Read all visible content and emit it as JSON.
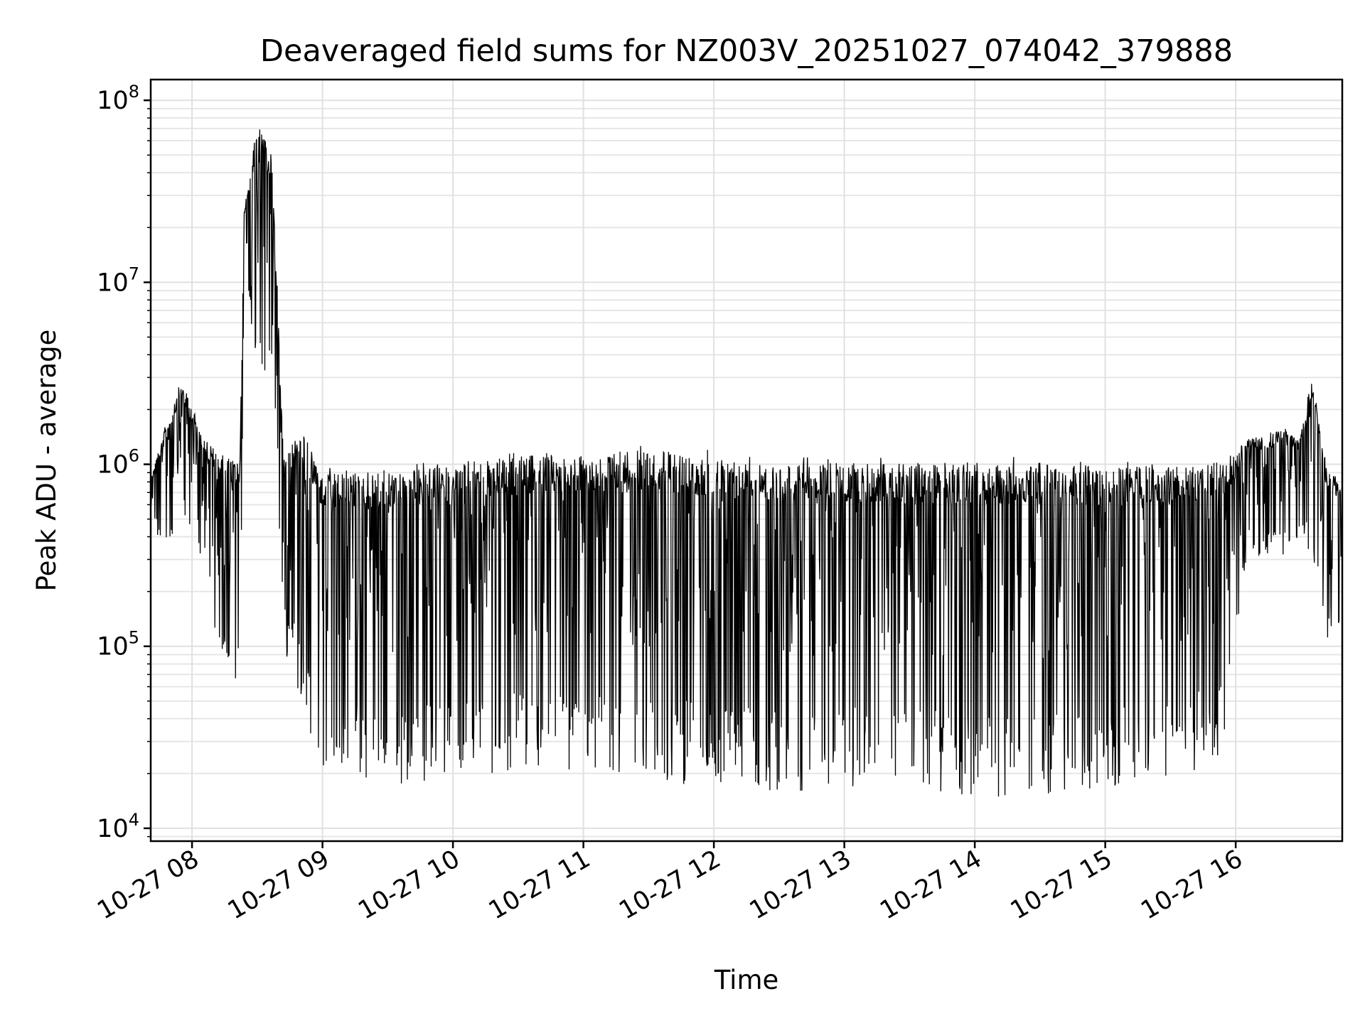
{
  "chart_data": {
    "type": "line",
    "title": "Deaveraged field sums for NZ003V_20251027_074042_379888",
    "xlabel": "Time",
    "ylabel": "Peak ADU - average",
    "yscale": "log",
    "xlim": [
      "2025-10-27 07:41",
      "2025-10-27 16:49"
    ],
    "ylim": [
      8500,
      130000000
    ],
    "grid": true,
    "x_ticks": [
      {
        "value": "2025-10-27 08:00",
        "label": "10-27 08"
      },
      {
        "value": "2025-10-27 09:00",
        "label": "10-27 09"
      },
      {
        "value": "2025-10-27 10:00",
        "label": "10-27 10"
      },
      {
        "value": "2025-10-27 11:00",
        "label": "10-27 11"
      },
      {
        "value": "2025-10-27 12:00",
        "label": "10-27 12"
      },
      {
        "value": "2025-10-27 13:00",
        "label": "10-27 13"
      },
      {
        "value": "2025-10-27 14:00",
        "label": "10-27 14"
      },
      {
        "value": "2025-10-27 15:00",
        "label": "10-27 15"
      },
      {
        "value": "2025-10-27 16:00",
        "label": "10-27 16"
      }
    ],
    "y_ticks": [
      {
        "value": 10000,
        "base": "10",
        "exp": "4"
      },
      {
        "value": 100000,
        "base": "10",
        "exp": "5"
      },
      {
        "value": 1000000,
        "base": "10",
        "exp": "6"
      },
      {
        "value": 10000000,
        "base": "10",
        "exp": "7"
      },
      {
        "value": 100000000,
        "base": "10",
        "exp": "8"
      }
    ],
    "series": [
      {
        "color": "#000000",
        "envelope": [
          {
            "x": "2025-10-27 07:41",
            "high": 900000,
            "low": 450000
          },
          {
            "x": "2025-10-27 07:50",
            "high": 2000000,
            "low": 300000
          },
          {
            "x": "2025-10-27 07:55",
            "high": 3000000,
            "low": 500000
          },
          {
            "x": "2025-10-27 08:05",
            "high": 1500000,
            "low": 300000
          },
          {
            "x": "2025-10-27 08:12",
            "high": 1200000,
            "low": 70000
          },
          {
            "x": "2025-10-27 08:22",
            "high": 1100000,
            "low": 60000
          },
          {
            "x": "2025-10-27 08:24",
            "high": 25000000,
            "low": 12000000
          },
          {
            "x": "2025-10-27 08:30",
            "high": 80000000,
            "low": 3000000
          },
          {
            "x": "2025-10-27 08:37",
            "high": 50000000,
            "low": 3500000
          },
          {
            "x": "2025-10-27 08:42",
            "high": 1200000,
            "low": 100000
          },
          {
            "x": "2025-10-27 08:50",
            "high": 1700000,
            "low": 50000
          },
          {
            "x": "2025-10-27 09:00",
            "high": 950000,
            "low": 20000
          },
          {
            "x": "2025-10-27 09:30",
            "high": 1000000,
            "low": 16000
          },
          {
            "x": "2025-10-27 10:00",
            "high": 1050000,
            "low": 20000
          },
          {
            "x": "2025-10-27 10:30",
            "high": 1200000,
            "low": 20000
          },
          {
            "x": "2025-10-27 11:00",
            "high": 1200000,
            "low": 20000
          },
          {
            "x": "2025-10-27 11:30",
            "high": 1300000,
            "low": 18000
          },
          {
            "x": "2025-10-27 12:00",
            "high": 1200000,
            "low": 17000
          },
          {
            "x": "2025-10-27 12:30",
            "high": 1100000,
            "low": 16000
          },
          {
            "x": "2025-10-27 13:00",
            "high": 1100000,
            "low": 16000
          },
          {
            "x": "2025-10-27 13:30",
            "high": 1100000,
            "low": 16000
          },
          {
            "x": "2025-10-27 14:00",
            "high": 1100000,
            "low": 14000
          },
          {
            "x": "2025-10-27 14:30",
            "high": 1100000,
            "low": 15000
          },
          {
            "x": "2025-10-27 15:00",
            "high": 1050000,
            "low": 16000
          },
          {
            "x": "2025-10-27 15:30",
            "high": 1050000,
            "low": 18000
          },
          {
            "x": "2025-10-27 15:55",
            "high": 1100000,
            "low": 25000
          },
          {
            "x": "2025-10-27 16:05",
            "high": 1400000,
            "low": 300000
          },
          {
            "x": "2025-10-27 16:20",
            "high": 1600000,
            "low": 300000
          },
          {
            "x": "2025-10-27 16:30",
            "high": 1500000,
            "low": 400000
          },
          {
            "x": "2025-10-27 16:35",
            "high": 3200000,
            "low": 300000
          },
          {
            "x": "2025-10-27 16:42",
            "high": 1000000,
            "low": 90000
          },
          {
            "x": "2025-10-27 16:49",
            "high": 800000,
            "low": 150000
          }
        ]
      }
    ]
  }
}
